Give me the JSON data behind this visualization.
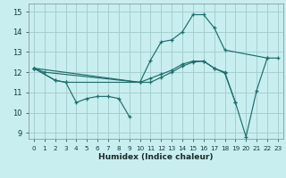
{
  "xlabel": "Humidex (Indice chaleur)",
  "xlim": [
    -0.5,
    23.5
  ],
  "ylim": [
    8.7,
    15.4
  ],
  "xtick_labels": [
    "0",
    "1",
    "2",
    "3",
    "4",
    "5",
    "6",
    "7",
    "8",
    "9",
    "10",
    "11",
    "12",
    "13",
    "14",
    "15",
    "16",
    "17",
    "18",
    "19",
    "20",
    "21",
    "22",
    "23"
  ],
  "xticks": [
    0,
    1,
    2,
    3,
    4,
    5,
    6,
    7,
    8,
    9,
    10,
    11,
    12,
    13,
    14,
    15,
    16,
    17,
    18,
    19,
    20,
    21,
    22,
    23
  ],
  "yticks": [
    9,
    10,
    11,
    12,
    13,
    14,
    15
  ],
  "bg_color": "#c8eef0",
  "grid_color": "#a0ccc8",
  "line_color": "#1e6e6a",
  "series": [
    {
      "x": [
        0,
        1,
        10,
        11,
        12,
        13,
        14,
        15,
        16,
        17,
        18,
        22,
        23
      ],
      "y": [
        12.2,
        12.0,
        11.5,
        12.6,
        13.5,
        13.6,
        14.0,
        14.85,
        14.85,
        14.2,
        13.1,
        12.7,
        12.7
      ]
    },
    {
      "x": [
        0,
        2,
        3,
        4,
        5,
        6,
        7,
        8,
        9
      ],
      "y": [
        12.2,
        11.6,
        11.5,
        10.5,
        10.7,
        10.8,
        10.8,
        10.7,
        9.8
      ]
    },
    {
      "x": [
        0,
        2,
        3,
        10,
        11,
        12,
        13,
        14,
        15,
        16,
        17,
        18,
        19,
        20,
        21,
        22
      ],
      "y": [
        12.2,
        11.6,
        11.5,
        11.5,
        11.7,
        11.9,
        12.1,
        12.4,
        12.55,
        12.55,
        12.2,
        11.95,
        10.5,
        8.8,
        11.1,
        12.7
      ]
    },
    {
      "x": [
        0,
        10,
        11,
        12,
        13,
        14,
        15,
        16,
        17,
        18,
        19
      ],
      "y": [
        12.2,
        11.5,
        11.5,
        11.75,
        12.0,
        12.3,
        12.5,
        12.55,
        12.2,
        12.0,
        10.5
      ]
    }
  ]
}
